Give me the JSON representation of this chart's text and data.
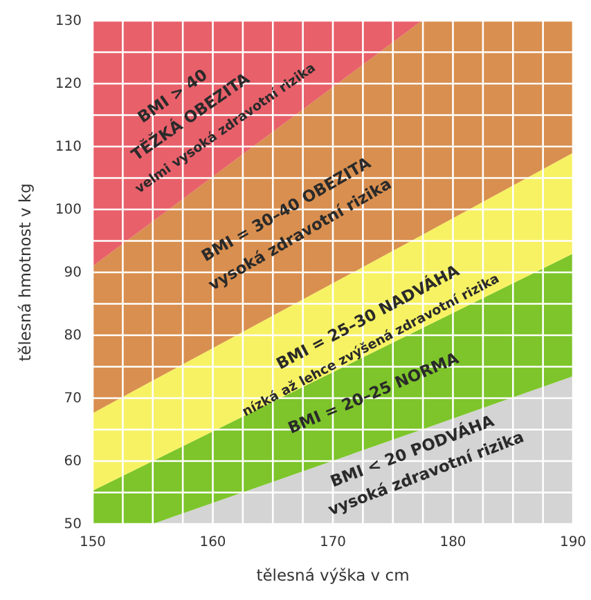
{
  "chart_data": {
    "type": "area",
    "xlabel": "tělesná výška v cm",
    "ylabel": "tělesná hmotnost v kg",
    "xlim": [
      150,
      190
    ],
    "ylim": [
      50,
      130
    ],
    "xticks": [
      150,
      {
        "value": 152.5,
        "label": null
      },
      {
        "value": 155,
        "label": null
      },
      {
        "value": 157.5,
        "label": null
      },
      160,
      {
        "value": 162.5,
        "label": null
      },
      {
        "value": 165,
        "label": null
      },
      {
        "value": 167.5,
        "label": null
      },
      170,
      {
        "value": 172.5,
        "label": null
      },
      {
        "value": 175,
        "label": null
      },
      {
        "value": 177.5,
        "label": null
      },
      180,
      {
        "value": 182.5,
        "label": null
      },
      {
        "value": 185,
        "label": null
      },
      {
        "value": 187.5,
        "label": null
      },
      190
    ],
    "yticks": [
      50,
      {
        "value": 55,
        "label": null
      },
      60,
      {
        "value": 65,
        "label": null
      },
      70,
      {
        "value": 75,
        "label": null
      },
      80,
      {
        "value": 85,
        "label": null
      },
      90,
      {
        "value": 95,
        "label": null
      },
      100,
      {
        "value": 105,
        "label": null
      },
      110,
      {
        "value": 115,
        "label": null
      },
      120,
      {
        "value": 125,
        "label": null
      },
      130
    ],
    "grid": true,
    "x": [
      150,
      155,
      177.4,
      190
    ],
    "series": [
      {
        "color": "#d4d4d4",
        "values": [
          50,
          50,
          65.0,
          73.5
        ]
      },
      {
        "color": "#7dc52a",
        "values": [
          55.3,
          60.0,
          81.1,
          93
        ]
      },
      {
        "color": "#f7f263",
        "values": [
          67.6,
          72.8,
          95.9,
          109
        ]
      },
      {
        "color": "#d98f4f",
        "values": [
          91,
          98.1,
          130,
          130
        ]
      },
      {
        "color": "#e8606a",
        "values": [
          130,
          130,
          130,
          130
        ]
      }
    ],
    "annotations": [
      "BMI > 40",
      "TĚŽKÁ OBEZITA",
      "velmi vysoká zdravotní rizika",
      "BMI = 30–40 OBEZITA",
      "vysoká zdravotní rizika",
      "BMI = 25–30 NADVÁHA",
      "nízká až lehce zvýšená zdravotní rizika",
      "BMI = 20–25 NORMA",
      "BMI < 20 PODVÁHA",
      "vysoká zdravotní rizika"
    ]
  }
}
